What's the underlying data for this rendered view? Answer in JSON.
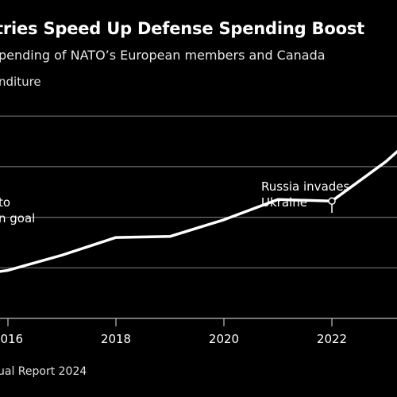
{
  "chart_data": {
    "type": "line",
    "title": "tries Speed Up Defense Spending Boost",
    "subtitle": "pending of NATO’s European members and Canada",
    "ylabel": "nditure",
    "source": "ual Report 2024",
    "x_ticks": [
      "2016",
      "2018",
      "2020",
      "2022"
    ],
    "x": [
      2015,
      2016,
      2017,
      2018,
      2019,
      2020,
      2021,
      2022,
      2023,
      2024
    ],
    "xlim": [
      2015,
      2024
    ],
    "ylim": [
      0,
      4
    ],
    "gridlines_y": [
      1,
      2,
      3,
      4
    ],
    "series": [
      {
        "values": [
          0.8,
          0.95,
          1.25,
          1.6,
          1.62,
          1.95,
          2.35,
          2.32,
          3.1,
          4.05
        ]
      }
    ],
    "annotations": [
      {
        "lines": [
          "Russia invades",
          "Ukraine"
        ],
        "x": 2022,
        "y": 2.32
      },
      {
        "lines": [
          "to",
          "n goal"
        ],
        "x": 2015,
        "y": 3.0
      }
    ],
    "line_color": "#ffffff",
    "grid_color": "#6e6e6e",
    "background": "#000000"
  }
}
